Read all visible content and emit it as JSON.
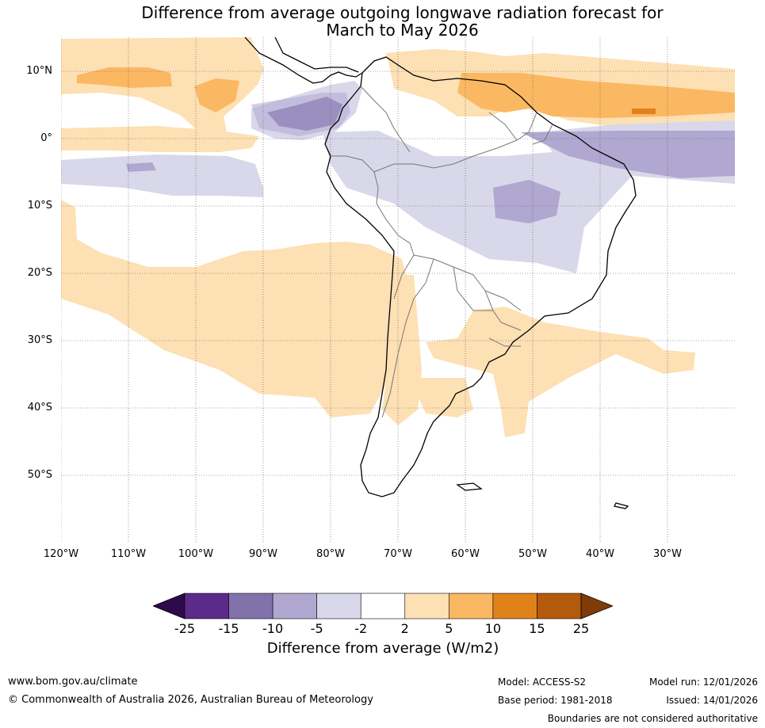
{
  "title": {
    "line1": "Difference from average outgoing longwave radiation forecast for",
    "line2": "March to May 2026"
  },
  "map": {
    "lat_labels": [
      "10°N",
      "0°",
      "10°S",
      "20°S",
      "30°S",
      "40°S",
      "50°S"
    ],
    "lon_labels": [
      "120°W",
      "110°W",
      "100°W",
      "90°W",
      "80°W",
      "70°W",
      "60°W",
      "50°W",
      "40°W",
      "30°W"
    ]
  },
  "colorbar": {
    "ticks": [
      "-25",
      "-15",
      "-10",
      "-5",
      "-2",
      "2",
      "5",
      "10",
      "15",
      "25"
    ],
    "colors": [
      "#5b2a8a",
      "#8272ac",
      "#b0a8d0",
      "#d8d8ea",
      "#ffffff",
      "#fde0b3",
      "#fbb862",
      "#e0821a",
      "#b35a0c"
    ],
    "under_color": "#2d0a4a",
    "over_color": "#7f3b08",
    "label": "Difference from average (W/m2)"
  },
  "footer": {
    "website": "www.bom.gov.au/climate",
    "copyright": "© Commonwealth of Australia 2026, Australian Bureau of Meteorology",
    "model": "Model: ACCESS-S2",
    "base_period": "Base period: 1981-2018",
    "model_run": "Model run: 12/01/2026",
    "issued": "Issued: 14/01/2026",
    "disclaimer": "Boundaries are not considered authoritative"
  }
}
